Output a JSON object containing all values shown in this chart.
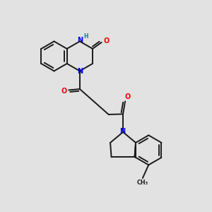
{
  "bg_color": "#e2e2e2",
  "bond_color": "#1a1a1a",
  "bond_width": 1.4,
  "atom_colors": {
    "N": "#0000ee",
    "O": "#ee0000",
    "H": "#008888",
    "C": "#1a1a1a"
  },
  "font_size_atom": 7.0,
  "font_size_H": 5.5
}
